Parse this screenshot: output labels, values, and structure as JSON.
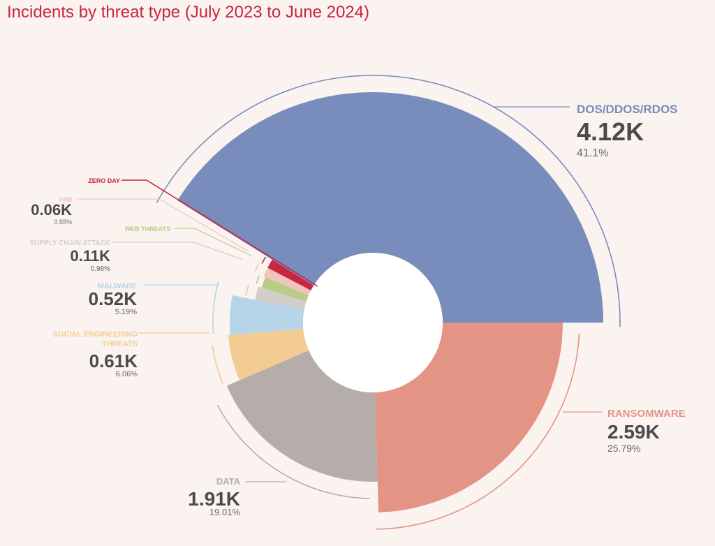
{
  "title": "Incidents by threat type (July 2023 to June 2024)",
  "chart_data": {
    "type": "pie",
    "title": "Incidents by threat type (July 2023 to June 2024)",
    "variant": "radial-donut (radius proportional to value)",
    "slices": [
      {
        "name": "DOS/DDOS/RDOS",
        "value_label": "4.12K",
        "value": 4120,
        "percent_label": "41.1%",
        "percent": 41.1,
        "color": "#788dbc"
      },
      {
        "name": "RANSOMWARE",
        "value_label": "2.59K",
        "value": 2590,
        "percent_label": "25.79%",
        "percent": 25.79,
        "color": "#e39485"
      },
      {
        "name": "DATA",
        "value_label": "1.91K",
        "value": 1910,
        "percent_label": "19.01%",
        "percent": 19.01,
        "color": "#b5adaa"
      },
      {
        "name": "SOCIAL ENGINEERING THREATS",
        "value_label": "0.61K",
        "value": 610,
        "percent_label": "6.06%",
        "percent": 6.06,
        "color": "#f3cc93"
      },
      {
        "name": "MALWARE",
        "value_label": "0.52K",
        "value": 520,
        "percent_label": "5.19%",
        "percent": 5.19,
        "color": "#b7d5e9"
      },
      {
        "name": "SUPPLY CHAIN ATTACK",
        "value_label": "0.11K",
        "value": 110,
        "percent_label": "0.98%",
        "percent": 0.98,
        "color": "#d4cdc9"
      },
      {
        "name": "WEB THREATS",
        "value_label": "",
        "value": null,
        "percent_label": "",
        "percent": null,
        "color": "#b9cc86"
      },
      {
        "name": "FIMI",
        "value_label": "0.06K",
        "value": 60,
        "percent_label": "0.55%",
        "percent": 0.55,
        "color": "#f1c3c0"
      },
      {
        "name": "ZERO DAY",
        "value_label": "",
        "value": null,
        "percent_label": "",
        "percent": null,
        "color": "#c8253f"
      }
    ]
  }
}
